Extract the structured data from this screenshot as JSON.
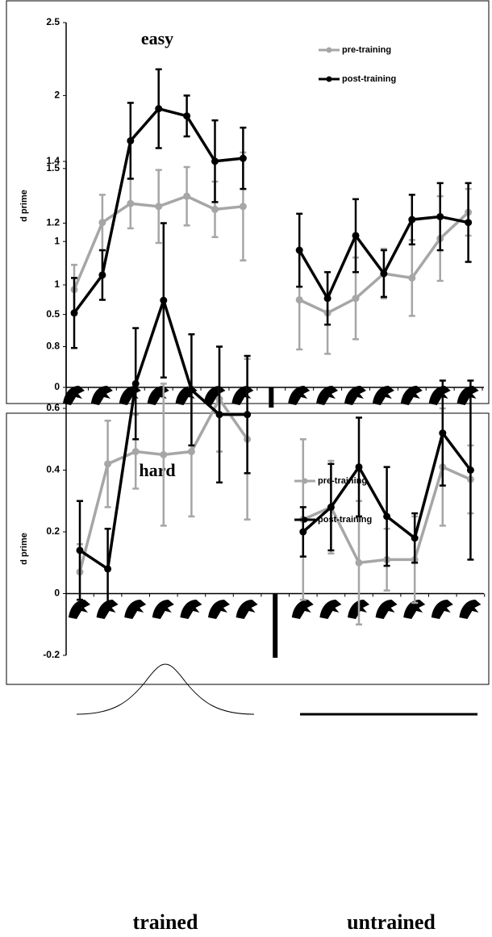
{
  "chart_data": [
    {
      "type": "line",
      "title": "easy",
      "y_label": "d prime",
      "categories": [
        null,
        null,
        null,
        null,
        null,
        null,
        null,
        null,
        null,
        null,
        null,
        null,
        null,
        null,
        null
      ],
      "ylim": [
        0,
        2.5
      ],
      "yticks": [
        0,
        0.5,
        1,
        1.5,
        2,
        2.5
      ],
      "series": [
        {
          "name": "pre-training",
          "color": "#a6a6a6",
          "values": [
            0.67,
            1.13,
            1.26,
            1.24,
            1.31,
            1.22,
            1.24,
            null,
            0.6,
            0.51,
            0.61,
            0.78,
            0.75,
            1.02,
            1.2
          ],
          "errors": [
            0.17,
            0.19,
            0.17,
            0.25,
            0.2,
            0.19,
            0.37,
            null,
            0.34,
            0.28,
            0.28,
            0.17,
            0.26,
            0.29,
            0.16
          ]
        },
        {
          "name": "post-training",
          "color": "#000000",
          "values": [
            0.51,
            0.77,
            1.69,
            1.91,
            1.86,
            1.55,
            1.57,
            null,
            0.94,
            0.61,
            1.04,
            0.78,
            1.15,
            1.17,
            1.13
          ],
          "errors": [
            0.24,
            0.17,
            0.26,
            0.27,
            0.14,
            0.28,
            0.21,
            null,
            0.25,
            0.18,
            0.25,
            0.16,
            0.17,
            0.23,
            0.27
          ]
        }
      ]
    },
    {
      "type": "line",
      "title": "hard",
      "y_label": "d prime",
      "categories": [
        null,
        null,
        null,
        null,
        null,
        null,
        null,
        null,
        null,
        null,
        null,
        null,
        null,
        null,
        null
      ],
      "ylim": [
        -0.2,
        1.4
      ],
      "yticks": [
        -0.2,
        0,
        0.2,
        0.4,
        0.6,
        0.8,
        1,
        1.2,
        1.4
      ],
      "series": [
        {
          "name": "pre-training",
          "color": "#a6a6a6",
          "values": [
            0.07,
            0.42,
            0.46,
            0.45,
            0.46,
            0.63,
            0.5,
            null,
            0.24,
            0.28,
            0.1,
            0.11,
            0.11,
            0.41,
            0.37
          ],
          "errors": [
            0.09,
            0.14,
            0.12,
            0.23,
            0.21,
            0.17,
            0.26,
            null,
            0.26,
            0.15,
            0.2,
            0.1,
            0.14,
            0.19,
            0.11
          ]
        },
        {
          "name": "post-training",
          "color": "#000000",
          "values": [
            0.14,
            0.08,
            0.68,
            0.95,
            0.66,
            0.58,
            0.58,
            null,
            0.2,
            0.28,
            0.41,
            0.25,
            0.18,
            0.52,
            0.4
          ],
          "errors": [
            0.16,
            0.13,
            0.18,
            0.25,
            0.18,
            0.22,
            0.19,
            null,
            0.08,
            0.14,
            0.16,
            0.16,
            0.08,
            0.17,
            0.29
          ]
        }
      ]
    }
  ],
  "group_labels": [
    "trained",
    "untrained"
  ]
}
